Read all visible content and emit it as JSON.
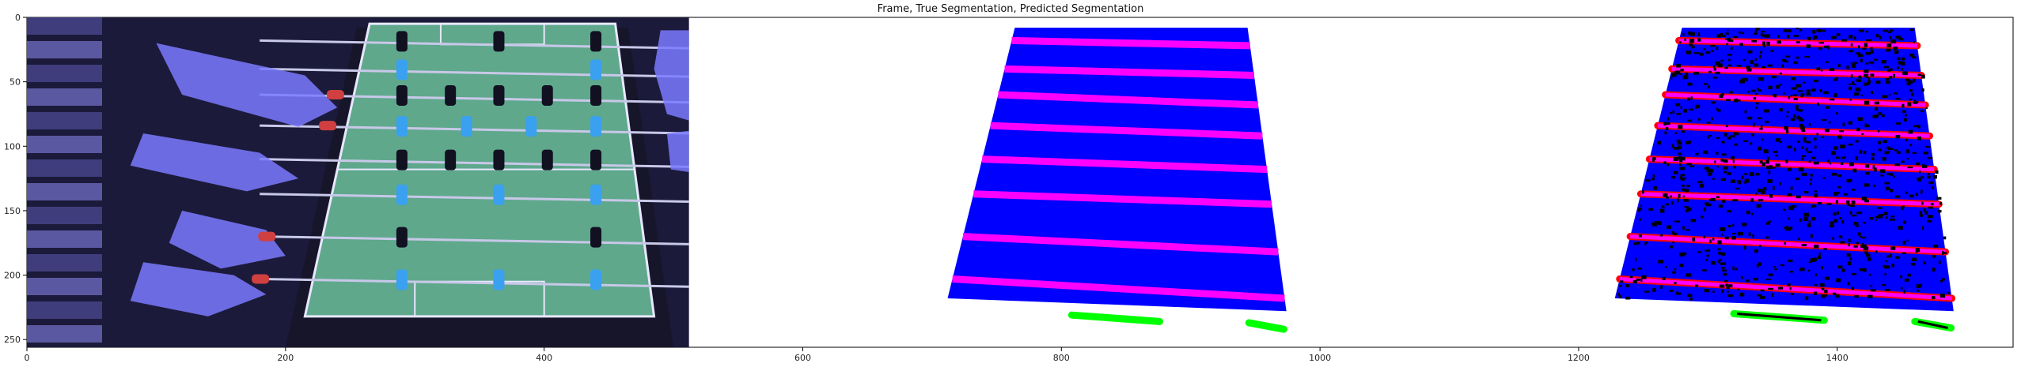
{
  "figure": {
    "title": "Frame, True Segmentation, Predicted Segmentation"
  },
  "chart_data": {
    "type": "image",
    "title": "Frame, True Segmentation, Predicted Segmentation",
    "xlim": [
      0,
      1536
    ],
    "ylim": [
      256,
      0
    ],
    "x_ticks": [
      0,
      200,
      400,
      600,
      800,
      1000,
      1200,
      1400
    ],
    "y_ticks": [
      0,
      50,
      100,
      150,
      200,
      250
    ],
    "grid": false,
    "panels": [
      {
        "name": "frame",
        "x_range": [
          0,
          512
        ],
        "content": "camera frame of a foosball table with hands on rods"
      },
      {
        "name": "true-segmentation",
        "x_range": [
          512,
          1024
        ],
        "table_corners": [
          [
            764,
            8
          ],
          [
            944,
            8
          ],
          [
            974,
            228
          ],
          [
            712,
            218
          ]
        ],
        "rods_y_left": [
          18,
          40,
          60,
          84,
          110,
          137,
          170,
          203
        ],
        "rods_y_right": [
          22,
          45,
          68,
          92,
          118,
          145,
          182,
          218
        ],
        "ball_markers": [
          [
            808,
            231,
            876,
            236
          ],
          [
            945,
            237,
            972,
            242
          ]
        ]
      },
      {
        "name": "predicted-segmentation",
        "x_range": [
          1024,
          1536
        ],
        "table_corners": [
          [
            1280,
            8
          ],
          [
            1460,
            8
          ],
          [
            1490,
            228
          ],
          [
            1228,
            218
          ]
        ],
        "rods_y_left": [
          18,
          40,
          60,
          84,
          110,
          137,
          170,
          203
        ],
        "rods_y_right": [
          22,
          45,
          68,
          92,
          118,
          145,
          182,
          218
        ],
        "ball_markers": [
          [
            1320,
            230,
            1390,
            235
          ],
          [
            1460,
            236,
            1488,
            241
          ]
        ]
      }
    ],
    "colors": {
      "table": "#0000ff",
      "rod": "#ff00ff",
      "rod_edge": "#ff0000",
      "ball": "#00ff00",
      "background": "#000000",
      "frame_field": "#5fa88c",
      "frame_hands": "#7a7aff"
    }
  }
}
